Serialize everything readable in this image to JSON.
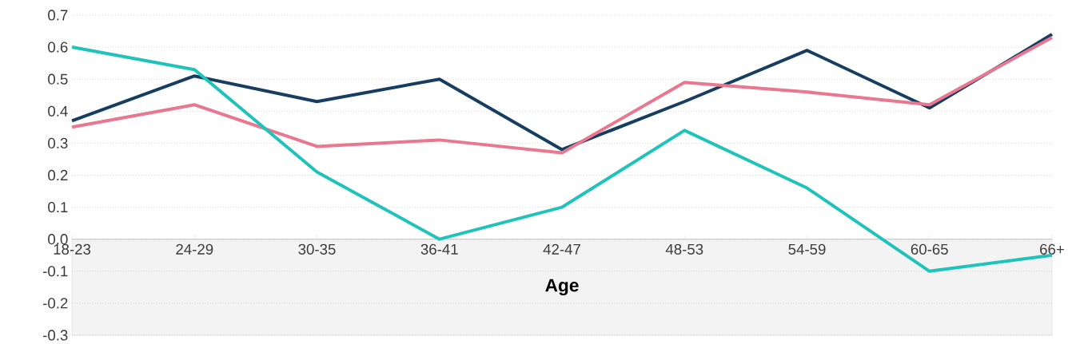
{
  "chart_data": {
    "type": "line",
    "xlabel": "Age",
    "categories": [
      "18-23",
      "24-29",
      "30-35",
      "36-41",
      "42-47",
      "48-53",
      "54-59",
      "60-65",
      "66+"
    ],
    "series": [
      {
        "color": "#173d60",
        "values": [
          0.37,
          0.51,
          0.43,
          0.5,
          0.28,
          0.43,
          0.59,
          0.41,
          0.64
        ]
      },
      {
        "color": "#e8778f",
        "values": [
          0.35,
          0.42,
          0.29,
          0.31,
          0.27,
          0.49,
          0.46,
          0.42,
          0.63
        ]
      },
      {
        "color": "#1fc3bb",
        "values": [
          0.6,
          0.53,
          0.21,
          0.0,
          0.1,
          0.34,
          0.16,
          -0.1,
          -0.05
        ]
      }
    ],
    "ylim": [
      -0.3,
      0.7
    ],
    "yticks": [
      {
        "value": -0.3,
        "label": "-0.3"
      },
      {
        "value": -0.2,
        "label": "-0.2"
      },
      {
        "value": -0.1,
        "label": "-0.1"
      },
      {
        "value": 0,
        "label": "0.0"
      },
      {
        "value": 0.1,
        "label": "0.1"
      },
      {
        "value": 0.2,
        "label": "0.2"
      },
      {
        "value": 0.3,
        "label": "0.3"
      },
      {
        "value": 0.4,
        "label": "0.4"
      },
      {
        "value": 0.5,
        "label": "0.5"
      },
      {
        "value": 0.6,
        "label": "0.6"
      },
      {
        "value": 0.7,
        "label": "0.7"
      }
    ],
    "grid": "y",
    "marker": "none",
    "line_style": "solid",
    "bands": [
      {
        "axis": "y",
        "from": -0.3,
        "to": 0,
        "color": "#f3f3f3"
      }
    ]
  }
}
